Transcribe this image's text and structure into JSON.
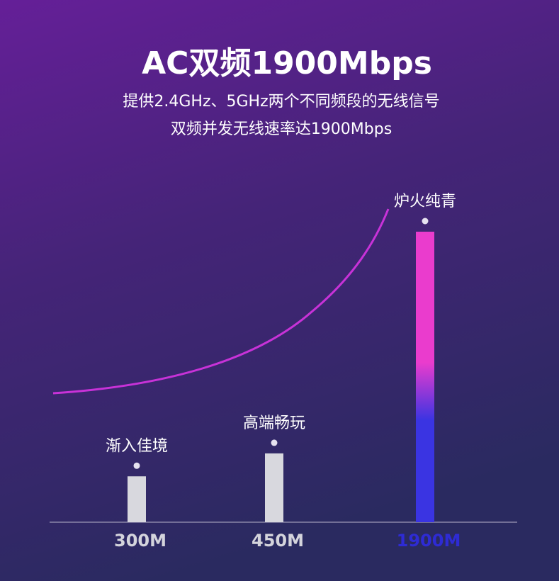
{
  "chart_data": {
    "type": "bar",
    "title": "AC双频1900Mbps",
    "subtitle": [
      "提供2.4GHz、5GHz两个不同频段的无线信号",
      "双频并发无线速率达1900Mbps"
    ],
    "categories": [
      "300M",
      "450M",
      "1900M"
    ],
    "values": [
      300,
      450,
      1900
    ],
    "annotations": [
      "渐入佳境",
      "高端畅玩",
      "炉火纯青"
    ],
    "colors": [
      "#d8d8de",
      "#d8d8de",
      [
        "#ea3ccd",
        "#3a34e2"
      ]
    ],
    "label_colors": [
      "#d4d4dc",
      "#d4d4dc",
      "#2e2bd4"
    ]
  }
}
